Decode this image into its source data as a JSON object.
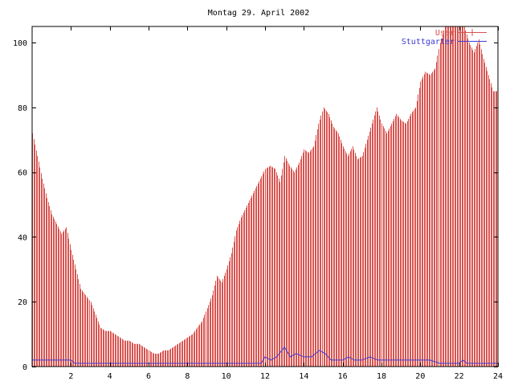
{
  "chart_data": {
    "type": "bar",
    "title": "Montag 29. April 2002",
    "xlabel": "",
    "ylabel": "",
    "xlim": [
      0,
      24
    ],
    "ylim": [
      0,
      105
    ],
    "x_ticks": [
      2,
      4,
      6,
      8,
      10,
      12,
      14,
      16,
      18,
      20,
      22,
      24
    ],
    "y_ticks": [
      0,
      20,
      40,
      60,
      80,
      100
    ],
    "legend_position": "top-right",
    "grid": false,
    "series": [
      {
        "name": "User",
        "type": "impulses",
        "color": "#d9534f",
        "points": [
          [
            0.0,
            72
          ],
          [
            0.25,
            65
          ],
          [
            0.5,
            58
          ],
          [
            0.75,
            52
          ],
          [
            1.0,
            47
          ],
          [
            1.25,
            44
          ],
          [
            1.5,
            41
          ],
          [
            1.75,
            43
          ],
          [
            2.0,
            36
          ],
          [
            2.25,
            30
          ],
          [
            2.5,
            24
          ],
          [
            2.75,
            22
          ],
          [
            3.0,
            20
          ],
          [
            3.25,
            16
          ],
          [
            3.5,
            12
          ],
          [
            3.75,
            11
          ],
          [
            4.0,
            11
          ],
          [
            4.25,
            10
          ],
          [
            4.5,
            9
          ],
          [
            4.75,
            8
          ],
          [
            5.0,
            8
          ],
          [
            5.25,
            7
          ],
          [
            5.5,
            7
          ],
          [
            5.75,
            6
          ],
          [
            6.0,
            5
          ],
          [
            6.25,
            4
          ],
          [
            6.5,
            4
          ],
          [
            6.75,
            5
          ],
          [
            7.0,
            5
          ],
          [
            7.25,
            6
          ],
          [
            7.5,
            7
          ],
          [
            7.75,
            8
          ],
          [
            8.0,
            9
          ],
          [
            8.25,
            10
          ],
          [
            8.5,
            12
          ],
          [
            8.75,
            14
          ],
          [
            9.0,
            18
          ],
          [
            9.25,
            22
          ],
          [
            9.5,
            28
          ],
          [
            9.75,
            26
          ],
          [
            10.0,
            30
          ],
          [
            10.25,
            35
          ],
          [
            10.5,
            42
          ],
          [
            10.75,
            46
          ],
          [
            11.0,
            49
          ],
          [
            11.25,
            52
          ],
          [
            11.5,
            55
          ],
          [
            11.75,
            58
          ],
          [
            12.0,
            61
          ],
          [
            12.25,
            62
          ],
          [
            12.5,
            61
          ],
          [
            12.75,
            57
          ],
          [
            13.0,
            65
          ],
          [
            13.25,
            62
          ],
          [
            13.5,
            60
          ],
          [
            13.75,
            63
          ],
          [
            14.0,
            67
          ],
          [
            14.25,
            66
          ],
          [
            14.5,
            68
          ],
          [
            14.75,
            75
          ],
          [
            15.0,
            80
          ],
          [
            15.25,
            78
          ],
          [
            15.5,
            74
          ],
          [
            15.75,
            72
          ],
          [
            16.0,
            68
          ],
          [
            16.25,
            65
          ],
          [
            16.5,
            68
          ],
          [
            16.75,
            64
          ],
          [
            17.0,
            65
          ],
          [
            17.25,
            70
          ],
          [
            17.5,
            75
          ],
          [
            17.75,
            80
          ],
          [
            18.0,
            75
          ],
          [
            18.25,
            72
          ],
          [
            18.5,
            75
          ],
          [
            18.75,
            78
          ],
          [
            19.0,
            76
          ],
          [
            19.25,
            75
          ],
          [
            19.5,
            78
          ],
          [
            19.75,
            80
          ],
          [
            20.0,
            88
          ],
          [
            20.25,
            91
          ],
          [
            20.5,
            90
          ],
          [
            20.75,
            92
          ],
          [
            21.0,
            100
          ],
          [
            21.25,
            105
          ],
          [
            21.5,
            105
          ],
          [
            21.75,
            105
          ],
          [
            22.0,
            105
          ],
          [
            22.25,
            105
          ],
          [
            22.5,
            100
          ],
          [
            22.75,
            97
          ],
          [
            23.0,
            101
          ],
          [
            23.25,
            95
          ],
          [
            23.5,
            90
          ],
          [
            23.75,
            85
          ]
        ]
      },
      {
        "name": "Stuttgarter",
        "type": "line",
        "color": "#3b3bd6",
        "points": [
          [
            0,
            2
          ],
          [
            2.0,
            2
          ],
          [
            2.2,
            1
          ],
          [
            11.5,
            1
          ],
          [
            11.8,
            1
          ],
          [
            12.0,
            3
          ],
          [
            12.3,
            2
          ],
          [
            12.6,
            3
          ],
          [
            13.0,
            6
          ],
          [
            13.3,
            3
          ],
          [
            13.6,
            4
          ],
          [
            14.0,
            3
          ],
          [
            14.4,
            3
          ],
          [
            14.8,
            5
          ],
          [
            15.1,
            4
          ],
          [
            15.4,
            2
          ],
          [
            16.0,
            2
          ],
          [
            16.3,
            3
          ],
          [
            16.6,
            2
          ],
          [
            17.0,
            2
          ],
          [
            17.4,
            3
          ],
          [
            17.8,
            2
          ],
          [
            20.5,
            2
          ],
          [
            21.0,
            1
          ],
          [
            22.0,
            1
          ],
          [
            22.2,
            2
          ],
          [
            22.4,
            1
          ],
          [
            24,
            1
          ]
        ]
      }
    ]
  }
}
